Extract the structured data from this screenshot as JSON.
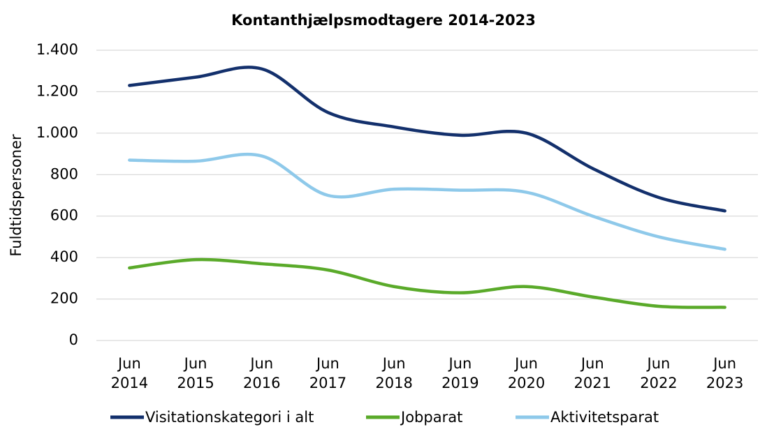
{
  "chart_data": {
    "type": "line",
    "title": "Kontanthjælpsmodtagere 2014-2023",
    "y_label": "Fuldtidspersoner",
    "categories": [
      "Jun 2014",
      "Jun 2015",
      "Jun 2016",
      "Jun 2017",
      "Jun 2018",
      "Jun 2019",
      "Jun 2020",
      "Jun 2021",
      "Jun 2022",
      "Jun 2023"
    ],
    "series": [
      {
        "name": "Visitationskategori i alt",
        "color": "#13306c",
        "values": [
          1230,
          1270,
          1310,
          1100,
          1030,
          990,
          1000,
          830,
          690,
          625
        ]
      },
      {
        "name": "Jobparat",
        "color": "#5aaa2a",
        "values": [
          350,
          390,
          370,
          340,
          260,
          230,
          260,
          210,
          165,
          160
        ]
      },
      {
        "name": "Aktivitetsparat",
        "color": "#8ec9ea",
        "values": [
          870,
          865,
          890,
          700,
          730,
          725,
          715,
          600,
          500,
          440
        ]
      }
    ],
    "ylim": [
      0,
      1400
    ],
    "yticks": [
      0,
      200,
      400,
      600,
      800,
      {
        "value": 1000,
        "label": "1.000"
      },
      {
        "value": 1200,
        "label": "1.200"
      },
      {
        "value": 1400,
        "label": "1.400"
      }
    ],
    "grid": true,
    "legend": "bottom",
    "smooth": true
  }
}
